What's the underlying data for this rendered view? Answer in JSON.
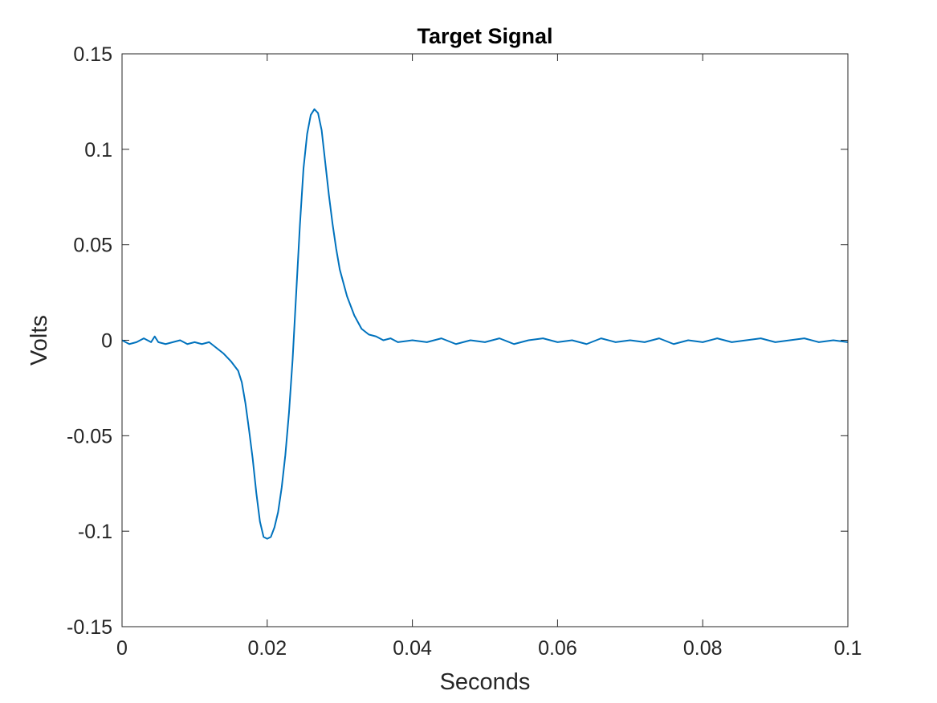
{
  "chart_data": {
    "type": "line",
    "title": "Target Signal",
    "xlabel": "Seconds",
    "ylabel": "Volts",
    "xlim": [
      0,
      0.1
    ],
    "ylim": [
      -0.15,
      0.15
    ],
    "xticks": [
      0,
      0.02,
      0.04,
      0.06,
      0.08,
      0.1
    ],
    "xtick_labels": [
      "0",
      "0.02",
      "0.04",
      "0.06",
      "0.08",
      "0.1"
    ],
    "yticks": [
      -0.15,
      -0.1,
      -0.05,
      0,
      0.05,
      0.1,
      0.15
    ],
    "ytick_labels": [
      "-0.15",
      "-0.1",
      "-0.05",
      "0",
      "0.05",
      "0.1",
      "0.15"
    ],
    "grid": false,
    "line_color": "#0072BD",
    "series": [
      {
        "x": [
          0,
          0.001,
          0.002,
          0.003,
          0.004,
          0.0045,
          0.005,
          0.006,
          0.007,
          0.008,
          0.009,
          0.01,
          0.011,
          0.012,
          0.013,
          0.014,
          0.015,
          0.016,
          0.0165,
          0.017,
          0.0175,
          0.018,
          0.0185,
          0.019,
          0.0195,
          0.02,
          0.0205,
          0.021,
          0.0215,
          0.022,
          0.0225,
          0.023,
          0.0235,
          0.024,
          0.0245,
          0.025,
          0.0255,
          0.026,
          0.0265,
          0.027,
          0.0275,
          0.028,
          0.0285,
          0.029,
          0.0295,
          0.03,
          0.031,
          0.032,
          0.033,
          0.034,
          0.035,
          0.036,
          0.037,
          0.038,
          0.04,
          0.042,
          0.044,
          0.046,
          0.048,
          0.05,
          0.052,
          0.054,
          0.056,
          0.058,
          0.06,
          0.062,
          0.064,
          0.066,
          0.068,
          0.07,
          0.072,
          0.074,
          0.076,
          0.078,
          0.08,
          0.082,
          0.084,
          0.086,
          0.088,
          0.09,
          0.092,
          0.094,
          0.096,
          0.098,
          0.1
        ],
        "y": [
          0,
          -0.002,
          -0.001,
          0.001,
          -0.001,
          0.002,
          -0.001,
          -0.002,
          -0.001,
          0.0,
          -0.002,
          -0.001,
          -0.002,
          -0.001,
          -0.004,
          -0.007,
          -0.011,
          -0.016,
          -0.022,
          -0.033,
          -0.047,
          -0.062,
          -0.08,
          -0.095,
          -0.103,
          -0.104,
          -0.103,
          -0.098,
          -0.09,
          -0.077,
          -0.06,
          -0.038,
          -0.01,
          0.025,
          0.06,
          0.09,
          0.108,
          0.118,
          0.121,
          0.119,
          0.11,
          0.093,
          0.076,
          0.061,
          0.048,
          0.037,
          0.023,
          0.013,
          0.006,
          0.003,
          0.002,
          0.0,
          0.001,
          -0.001,
          0.0,
          -0.001,
          0.001,
          -0.002,
          0.0,
          -0.001,
          0.001,
          -0.002,
          0.0,
          0.001,
          -0.001,
          0.0,
          -0.002,
          0.001,
          -0.001,
          0.0,
          -0.001,
          0.001,
          -0.002,
          0.0,
          -0.001,
          0.001,
          -0.001,
          0.0,
          0.001,
          -0.001,
          0.0,
          0.001,
          -0.001,
          0.0,
          -0.001
        ]
      }
    ]
  }
}
